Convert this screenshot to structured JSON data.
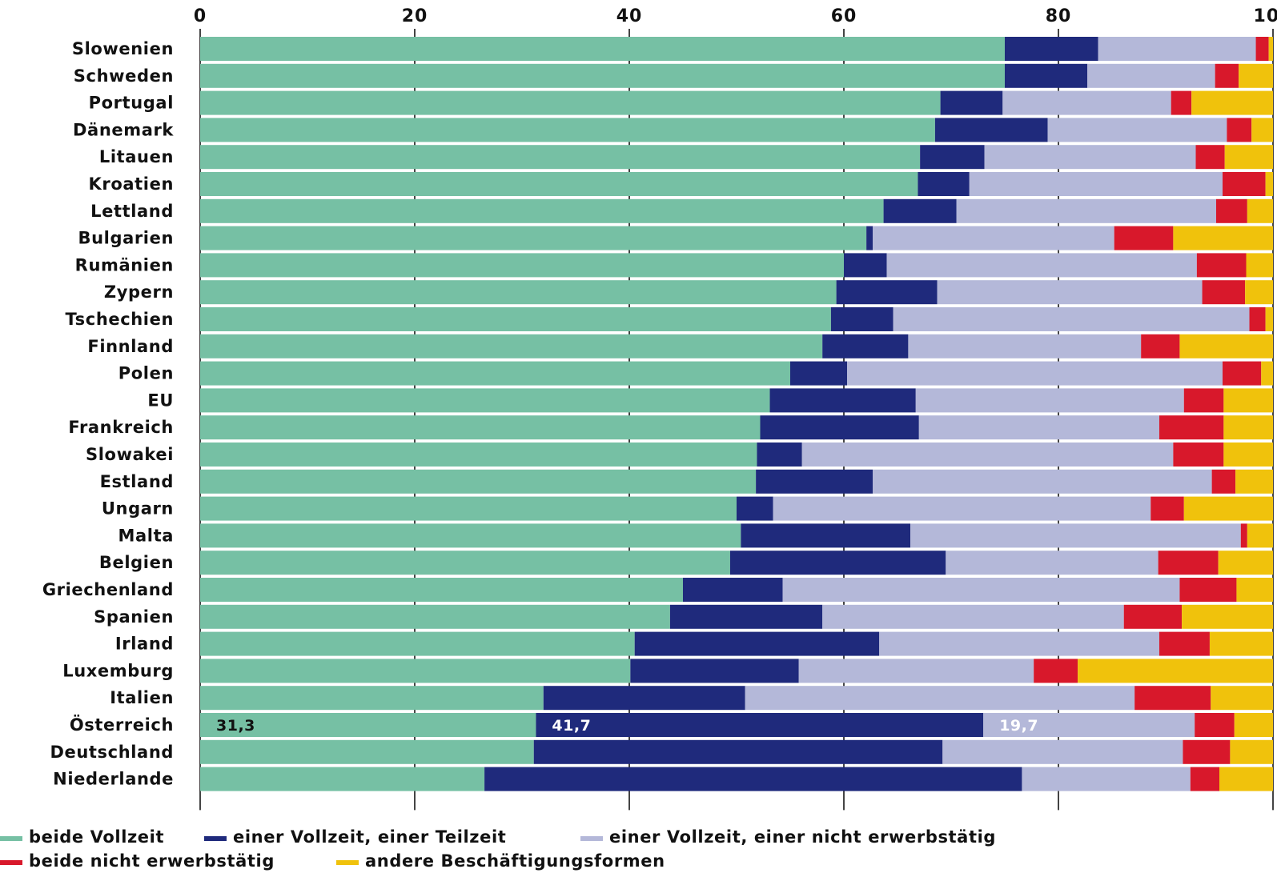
{
  "chart_data": {
    "type": "bar",
    "orientation": "horizontal",
    "stacked": true,
    "xlim": [
      0,
      100
    ],
    "xticks": [
      "0",
      "20",
      "40",
      "60",
      "80",
      "100"
    ],
    "categories": [
      "Slowenien",
      "Schweden",
      "Portugal",
      "Dänemark",
      "Litauen",
      "Kroatien",
      "Lettland",
      "Bulgarien",
      "Rumänien",
      "Zypern",
      "Tschechien",
      "Finnland",
      "Polen",
      "EU",
      "Frankreich",
      "Slowakei",
      "Estland",
      "Ungarn",
      "Malta",
      "Belgien",
      "Griechenland",
      "Spanien",
      "Irland",
      "Luxemburg",
      "Italien",
      "Österreich",
      "Deutschland",
      "Niederlande"
    ],
    "highlight_category": "Österreich",
    "series": [
      {
        "name": "beide Vollzeit",
        "color": "#76c0a4",
        "values": [
          75.0,
          75.0,
          69.0,
          68.5,
          67.1,
          66.9,
          63.7,
          62.1,
          60.0,
          59.3,
          58.8,
          58.0,
          55.0,
          53.1,
          52.2,
          51.9,
          51.8,
          50.0,
          50.4,
          49.4,
          45.0,
          43.8,
          40.5,
          40.1,
          32.0,
          31.3,
          31.1,
          26.5
        ]
      },
      {
        "name": "einer Vollzeit, einer Teilzeit",
        "color": "#1f2a7c",
        "values": [
          8.7,
          7.7,
          5.8,
          10.5,
          6.0,
          4.8,
          6.8,
          0.6,
          4.0,
          9.4,
          5.8,
          8.0,
          5.3,
          13.6,
          14.8,
          4.2,
          10.9,
          3.4,
          15.8,
          20.1,
          9.3,
          14.2,
          22.8,
          15.7,
          18.8,
          41.7,
          38.1,
          50.1
        ]
      },
      {
        "name": "einer Vollzeit, einer nicht erwerbstätig",
        "color": "#b4b8d9",
        "values": [
          14.7,
          11.9,
          15.7,
          16.7,
          19.7,
          23.6,
          24.2,
          22.5,
          28.9,
          24.7,
          33.2,
          21.7,
          35.0,
          25.0,
          22.4,
          34.6,
          31.6,
          35.2,
          30.8,
          19.8,
          37.0,
          28.1,
          26.1,
          21.9,
          36.3,
          19.7,
          22.4,
          15.7
        ]
      },
      {
        "name": "beide nicht erwerbstätig",
        "color": "#d8182b",
        "values": [
          1.2,
          2.2,
          1.9,
          2.3,
          2.7,
          4.0,
          2.9,
          5.5,
          4.6,
          4.0,
          1.5,
          3.6,
          3.6,
          3.7,
          6.0,
          4.7,
          2.2,
          3.1,
          0.6,
          5.6,
          5.3,
          5.4,
          4.7,
          4.1,
          7.1,
          3.7,
          4.4,
          2.7
        ]
      },
      {
        "name": "andere Beschäftigungsformen",
        "color": "#f0c20c",
        "values": [
          0.4,
          3.2,
          7.6,
          2.0,
          4.5,
          0.7,
          2.4,
          9.3,
          2.5,
          2.6,
          0.7,
          8.7,
          1.1,
          4.6,
          4.6,
          4.6,
          3.5,
          8.3,
          2.4,
          5.1,
          3.4,
          8.5,
          5.9,
          18.2,
          5.8,
          3.6,
          4.0,
          5.0
        ]
      }
    ],
    "data_labels": [
      {
        "category": "Österreich",
        "series": "beide Vollzeit",
        "text": "31,3",
        "color": "#111111"
      },
      {
        "category": "Österreich",
        "series": "einer Vollzeit, einer Teilzeit",
        "text": "41,7",
        "color": "#ffffff"
      },
      {
        "category": "Österreich",
        "series": "einer Vollzeit, einer nicht erwerbstätig",
        "text": "19,7",
        "color": "#ffffff"
      }
    ],
    "legend_position": "bottom",
    "grid": true
  }
}
